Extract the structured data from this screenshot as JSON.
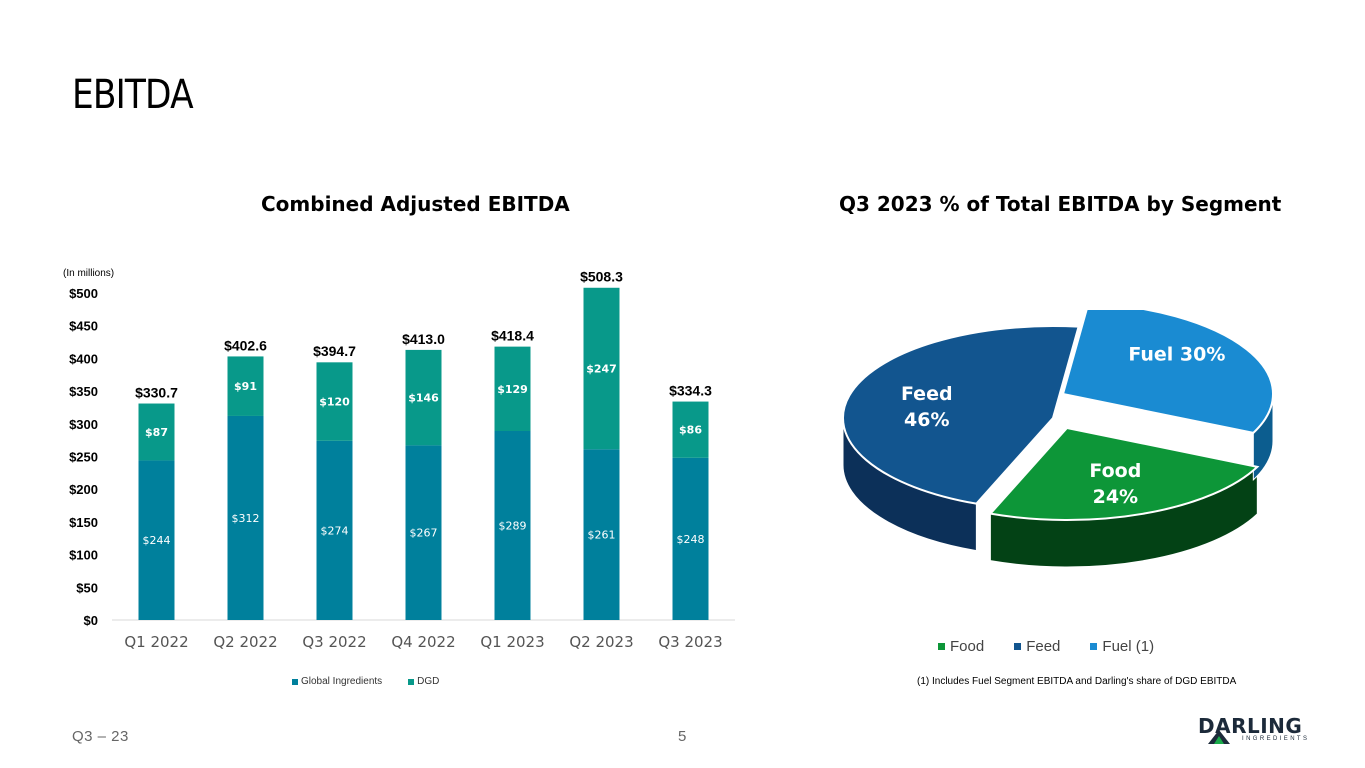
{
  "slide": {
    "title": "EBITDA",
    "footer_left": "Q3 – 23",
    "page_number": "5",
    "logo_word": "DARLING",
    "logo_sub": "INGREDIENTS"
  },
  "colors": {
    "global_ingredients": "#00809c",
    "dgd": "#08998a",
    "food": "#0d9638",
    "feed": "#12558f",
    "fuel": "#1a8bd2"
  },
  "chart_data": [
    {
      "type": "bar",
      "stacked": true,
      "title": "Combined Adjusted EBITDA",
      "units_note": "(In millions)",
      "categories": [
        "Q1 2022",
        "Q2 2022",
        "Q3 2022",
        "Q4 2022",
        "Q1 2023",
        "Q2 2023",
        "Q3 2023"
      ],
      "series": [
        {
          "name": "Global Ingredients",
          "values": [
            244,
            312,
            274,
            267,
            289,
            261,
            248
          ],
          "labels": [
            "$244",
            "$312",
            "$274",
            "$267",
            "$289",
            "$261",
            "$248"
          ]
        },
        {
          "name": "DGD",
          "values": [
            87,
            91,
            120,
            146,
            129,
            247,
            86
          ],
          "labels": [
            "$87",
            "$91",
            "$120",
            "$146",
            "$129",
            "$247",
            "$86"
          ]
        }
      ],
      "totals": [
        330.7,
        402.6,
        394.7,
        413.0,
        418.4,
        508.3,
        334.3
      ],
      "total_labels": [
        "$330.7",
        "$402.6",
        "$394.7",
        "$413.0",
        "$418.4",
        "$508.3",
        "$334.3"
      ],
      "ylim": [
        0,
        500
      ],
      "yticks": [
        0,
        50,
        100,
        150,
        200,
        250,
        300,
        350,
        400,
        450,
        500
      ],
      "ytick_labels": [
        "$0",
        "$50",
        "$100",
        "$150",
        "$200",
        "$250",
        "$300",
        "$350",
        "$400",
        "$450",
        "$500"
      ],
      "legend_position": "bottom"
    },
    {
      "type": "pie",
      "title": "Q3 2023 % of Total EBITDA by Segment",
      "labels": [
        "Food",
        "Feed",
        "Fuel (1)"
      ],
      "slice_labels": [
        "Food",
        "Feed",
        "Fuel"
      ],
      "values": [
        24,
        46,
        30
      ],
      "value_labels": [
        "24%",
        "46%",
        "30%"
      ],
      "legend_position": "bottom",
      "footnote": "(1) Includes Fuel Segment EBITDA and Darling's share of DGD EBITDA"
    }
  ]
}
